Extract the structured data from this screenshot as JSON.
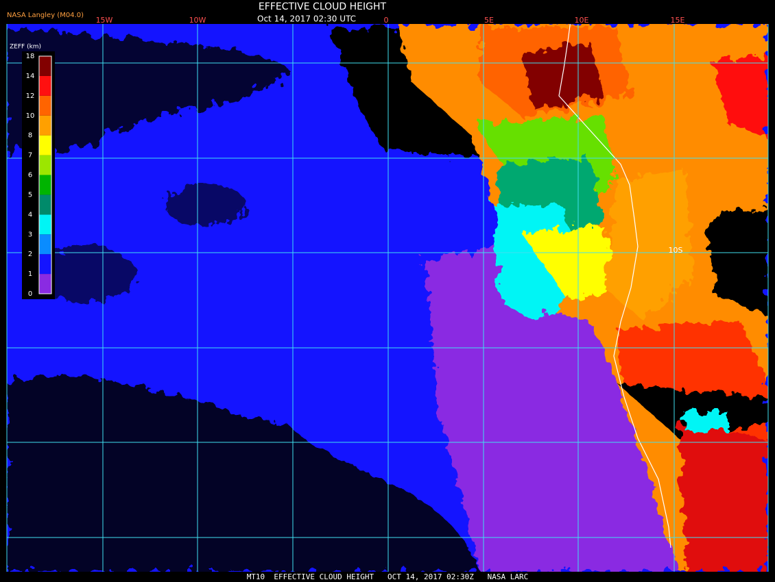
{
  "header": {
    "source": "NASA Langley (M04.0)",
    "title": "EFFECTIVE CLOUD HEIGHT",
    "datetime": "Oct 14, 2017 02:30 UTC"
  },
  "colorbar": {
    "label": "ZEFF (km)",
    "ticks": [
      0,
      1,
      2,
      3,
      4,
      5,
      6,
      7,
      8,
      10,
      12,
      14,
      18
    ],
    "colors": [
      "#8a2be2",
      "#1414ff",
      "#0a8cff",
      "#00f5f5",
      "#008a6a",
      "#00b400",
      "#9ce600",
      "#ffff00",
      "#ffa000",
      "#ff6400",
      "#ff1010",
      "#820000"
    ]
  },
  "map": {
    "lon_labels": [
      "15W",
      "10W",
      "0",
      "5E",
      "10E",
      "15E"
    ],
    "lat_labels": [
      "10S"
    ]
  },
  "footer": "MT10  EFFECTIVE CLOUD HEIGHT   OCT 14, 2017 02:30Z   NASA LARC"
}
